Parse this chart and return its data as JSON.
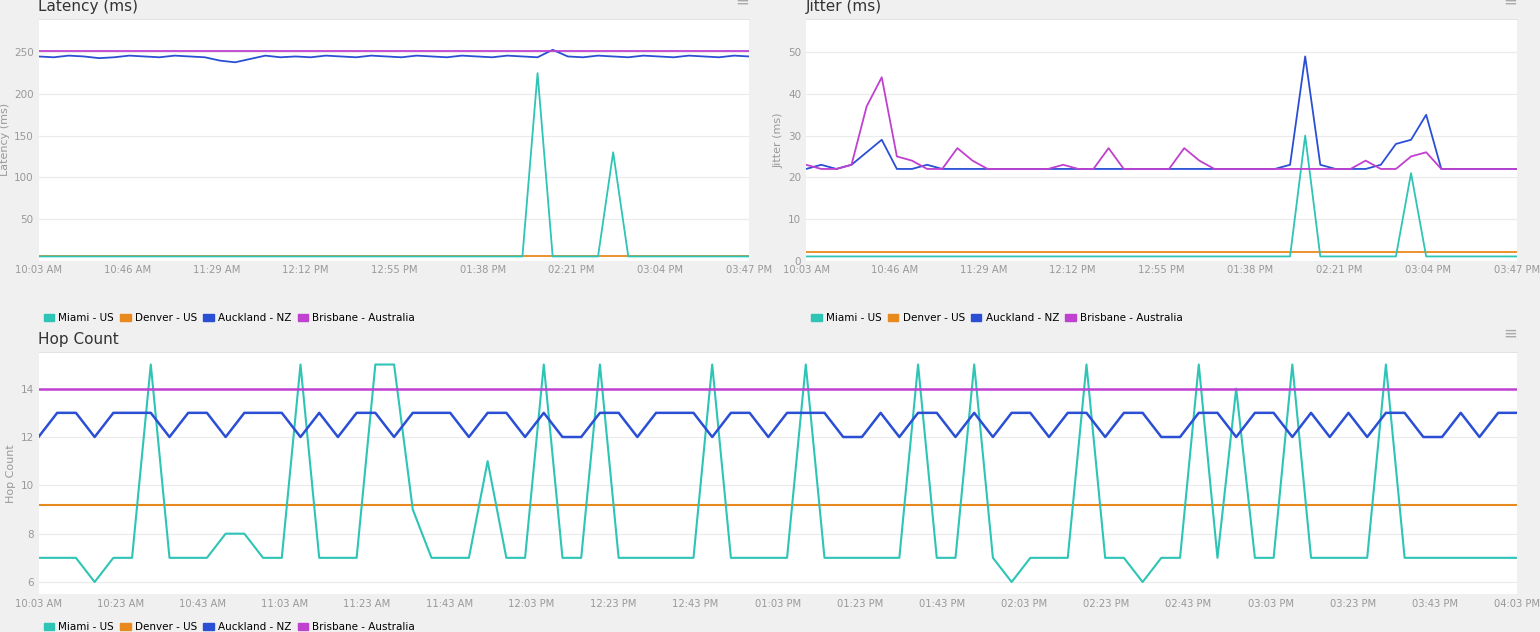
{
  "latency_xticks": [
    "10:03 AM",
    "10:46 AM",
    "11:29 AM",
    "12:12 PM",
    "12:55 PM",
    "01:38 PM",
    "02:21 PM",
    "03:04 PM",
    "03:47 PM"
  ],
  "jitter_xticks": [
    "10:03 AM",
    "10:46 AM",
    "11:29 AM",
    "12:12 PM",
    "12:55 PM",
    "01:38 PM",
    "02:21 PM",
    "03:04 PM",
    "03:47 PM"
  ],
  "hop_xticks": [
    "10:03 AM",
    "10:23 AM",
    "10:43 AM",
    "11:03 AM",
    "11:23 AM",
    "11:43 AM",
    "12:03 PM",
    "12:23 PM",
    "12:43 PM",
    "01:03 PM",
    "01:23 PM",
    "01:43 PM",
    "02:03 PM",
    "02:23 PM",
    "02:43 PM",
    "03:03 PM",
    "03:23 PM",
    "03:43 PM",
    "04:03 PM"
  ],
  "colors": {
    "miami": "#2ec4b6",
    "denver": "#e8891e",
    "auckland": "#2b4fd4",
    "brisbane": "#c040d0"
  },
  "latency_title": "Latency (ms)",
  "jitter_title": "Jitter (ms)",
  "hop_title": "Hop Count",
  "latency_ylabel": "Latency (ms)",
  "jitter_ylabel": "Jitter (ms)",
  "hop_ylabel": "Hop Count",
  "bg_color": "#f0f0f0",
  "panel_bg": "#ffffff",
  "grid_color": "#ebebeb",
  "title_color": "#333333",
  "axis_color": "#999999",
  "legend_items": [
    "Miami - US",
    "Denver - US",
    "Auckland - NZ",
    "Brisbane - Australia"
  ],
  "lat_miami": [
    5,
    5,
    5,
    5,
    5,
    5,
    5,
    5,
    5,
    5,
    5,
    5,
    5,
    5,
    5,
    5,
    5,
    5,
    5,
    5,
    5,
    5,
    5,
    5,
    5,
    5,
    5,
    5,
    5,
    5,
    5,
    5,
    5,
    225,
    5,
    5,
    5,
    5,
    130,
    5,
    5,
    5,
    5,
    5,
    5,
    5,
    5,
    5
  ],
  "lat_denver": [
    5,
    5,
    5,
    5,
    5,
    5,
    5,
    5,
    5,
    5,
    5,
    5,
    5,
    5,
    5,
    5,
    5,
    5,
    5,
    5,
    5,
    5,
    5,
    5,
    5,
    5,
    5,
    5,
    5,
    5,
    5,
    5,
    5,
    5,
    5,
    5,
    5,
    5,
    5,
    5,
    5,
    5,
    5,
    5,
    5,
    5,
    5,
    5
  ],
  "lat_auckland": [
    245,
    244,
    246,
    245,
    243,
    244,
    246,
    245,
    244,
    246,
    245,
    244,
    240,
    238,
    242,
    246,
    244,
    245,
    244,
    246,
    245,
    244,
    246,
    245,
    244,
    246,
    245,
    244,
    246,
    245,
    244,
    246,
    245,
    244,
    253,
    245,
    244,
    246,
    245,
    244,
    246,
    245,
    244,
    246,
    245,
    244,
    246,
    245
  ],
  "lat_brisbane": [
    252,
    252,
    252,
    252,
    252,
    252,
    252,
    252,
    252,
    252,
    252,
    252,
    252,
    252,
    252,
    252,
    252,
    252,
    252,
    252,
    252,
    252,
    252,
    252,
    252,
    252,
    252,
    252,
    252,
    252,
    252,
    252,
    252,
    252,
    252,
    252,
    252,
    252,
    252,
    252,
    252,
    252,
    252,
    252,
    252,
    252,
    252,
    252
  ],
  "jit_miami": [
    1,
    1,
    1,
    1,
    1,
    1,
    1,
    1,
    1,
    1,
    1,
    1,
    1,
    1,
    1,
    1,
    1,
    1,
    1,
    1,
    1,
    1,
    1,
    1,
    1,
    1,
    1,
    1,
    1,
    1,
    1,
    1,
    1,
    30,
    1,
    1,
    1,
    1,
    1,
    1,
    21,
    1,
    1,
    1,
    1,
    1,
    1,
    1
  ],
  "jit_denver": [
    2,
    2,
    2,
    2,
    2,
    2,
    2,
    2,
    2,
    2,
    2,
    2,
    2,
    2,
    2,
    2,
    2,
    2,
    2,
    2,
    2,
    2,
    2,
    2,
    2,
    2,
    2,
    2,
    2,
    2,
    2,
    2,
    2,
    2,
    2,
    2,
    2,
    2,
    2,
    2,
    2,
    2,
    2,
    2,
    2,
    2,
    2,
    2
  ],
  "jit_auckland": [
    22,
    23,
    22,
    23,
    26,
    29,
    22,
    22,
    23,
    22,
    22,
    22,
    22,
    22,
    22,
    22,
    22,
    22,
    22,
    22,
    22,
    22,
    22,
    22,
    22,
    22,
    22,
    22,
    22,
    22,
    22,
    22,
    23,
    49,
    23,
    22,
    22,
    22,
    23,
    28,
    29,
    35,
    22,
    22,
    22,
    22,
    22,
    22
  ],
  "jit_brisbane": [
    23,
    22,
    22,
    23,
    37,
    44,
    25,
    24,
    22,
    22,
    27,
    24,
    22,
    22,
    22,
    22,
    22,
    23,
    22,
    22,
    27,
    22,
    22,
    22,
    22,
    27,
    24,
    22,
    22,
    22,
    22,
    22,
    22,
    22,
    22,
    22,
    22,
    24,
    22,
    22,
    25,
    26,
    22,
    22,
    22,
    22,
    22,
    22
  ],
  "hop_miami": [
    7,
    7,
    7,
    6,
    7,
    7,
    15,
    7,
    7,
    7,
    8,
    8,
    7,
    7,
    15,
    7,
    7,
    7,
    15,
    15,
    9,
    7,
    7,
    7,
    11,
    7,
    7,
    15,
    7,
    7,
    15,
    7,
    7,
    7,
    7,
    7,
    15,
    7,
    7,
    7,
    7,
    15,
    7,
    7,
    7,
    7,
    7,
    15,
    7,
    7,
    15,
    7,
    6,
    7,
    7,
    7,
    15,
    7,
    7,
    6,
    7,
    7,
    15,
    7,
    14,
    7,
    7,
    15,
    7,
    7,
    7,
    7,
    15,
    7,
    7,
    7,
    7,
    7,
    7,
    7
  ],
  "hop_denver": 9.2,
  "hop_auckland": [
    12,
    13,
    13,
    12,
    13,
    13,
    13,
    12,
    13,
    13,
    12,
    13,
    13,
    13,
    12,
    13,
    12,
    13,
    13,
    12,
    13,
    13,
    13,
    12,
    13,
    13,
    12,
    13,
    12,
    12,
    13,
    13,
    12,
    13,
    13,
    13,
    12,
    13,
    13,
    12,
    13,
    13,
    13,
    12,
    12,
    13,
    12,
    13,
    13,
    12,
    13,
    12,
    13,
    13,
    12,
    13,
    13,
    12,
    13,
    13,
    12,
    12,
    13,
    13,
    12,
    13,
    13,
    12,
    13,
    12,
    13,
    12,
    13,
    13,
    12,
    12,
    13,
    12,
    13,
    13
  ],
  "hop_brisbane": 14
}
